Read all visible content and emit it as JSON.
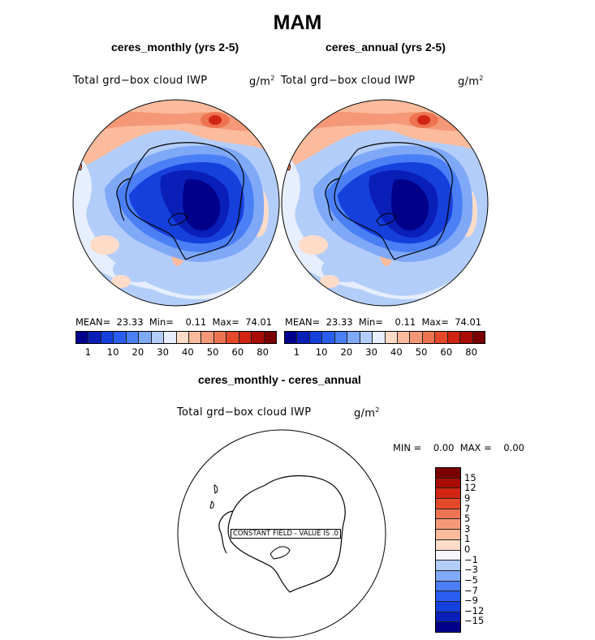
{
  "title": "MAM",
  "panels": [
    {
      "title": "ceres_monthly (yrs 2-5)",
      "variable": "Total grd−box cloud IWP",
      "units": "g/m",
      "units_exp": "2",
      "stats": {
        "mean_label": "MEAN=",
        "mean": "23.33",
        "min_label": "Min=",
        "min": "0.11",
        "max_label": "Max=",
        "max": "74.01"
      }
    },
    {
      "title": "ceres_annual (yrs 2-5)",
      "variable": "Total grd−box cloud IWP",
      "units": "g/m",
      "units_exp": "2",
      "stats": {
        "mean_label": "MEAN=",
        "mean": "23.33",
        "min_label": "Min=",
        "min": "0.11",
        "max_label": "Max=",
        "max": "74.01"
      }
    }
  ],
  "diff_panel": {
    "title": "ceres_monthly - ceres_annual",
    "variable": "Total grd−box cloud IWP",
    "units": "g/m",
    "units_exp": "2",
    "stats": {
      "min_label": "MIN =",
      "min": "0.00",
      "max_label": "MAX =",
      "max": "0.00"
    },
    "constant_label": "CONSTANT FIELD - VALUE IS .0"
  },
  "colorbar": {
    "colors": [
      "#00008b",
      "#0a1fb8",
      "#1540dc",
      "#2a5ef0",
      "#4a7ff5",
      "#7fa8f7",
      "#b3cdfa",
      "#e6eeff",
      "#ffdcc8",
      "#fcbb9c",
      "#f59878",
      "#ee7451",
      "#e4492a",
      "#cf2512",
      "#a80c05",
      "#7a0000"
    ],
    "ticks": [
      "1",
      "10",
      "20",
      "30",
      "40",
      "50",
      "60",
      "80"
    ]
  },
  "diff_colorbar": {
    "colors": [
      "#7a0000",
      "#a80c05",
      "#cf2512",
      "#e4492a",
      "#ee7451",
      "#f59878",
      "#fcbb9c",
      "#ffdcc8",
      "#f6f6ff",
      "#b3cdfa",
      "#7fa8f7",
      "#4a7ff5",
      "#2a5ef0",
      "#1540dc",
      "#0a1fb8",
      "#00008b"
    ],
    "ticks": [
      "15",
      "12",
      "9",
      "7",
      "5",
      "3",
      "1",
      "0",
      "−1",
      "−3",
      "−5",
      "−7",
      "−9",
      "−12",
      "−15"
    ]
  },
  "chart_data": [
    {
      "type": "heatmap",
      "title": "ceres_monthly (yrs 2-5)",
      "variable": "Total grd−box cloud IWP",
      "units": "g/m2",
      "projection": "south polar stereographic",
      "mean": 23.33,
      "min": 0.11,
      "max": 74.01,
      "colorbar_ticks": [
        1,
        10,
        20,
        30,
        40,
        50,
        60,
        80
      ]
    },
    {
      "type": "heatmap",
      "title": "ceres_annual (yrs 2-5)",
      "variable": "Total grd−box cloud IWP",
      "units": "g/m2",
      "projection": "south polar stereographic",
      "mean": 23.33,
      "min": 0.11,
      "max": 74.01,
      "colorbar_ticks": [
        1,
        10,
        20,
        30,
        40,
        50,
        60,
        80
      ]
    },
    {
      "type": "heatmap",
      "title": "ceres_monthly - ceres_annual",
      "variable": "Total grd−box cloud IWP",
      "units": "g/m2",
      "projection": "south polar stereographic",
      "min": 0.0,
      "max": 0.0,
      "constant_value": 0.0,
      "colorbar_ticks": [
        15,
        12,
        9,
        7,
        5,
        3,
        1,
        0,
        -1,
        -3,
        -5,
        -7,
        -9,
        -12,
        -15
      ]
    }
  ]
}
